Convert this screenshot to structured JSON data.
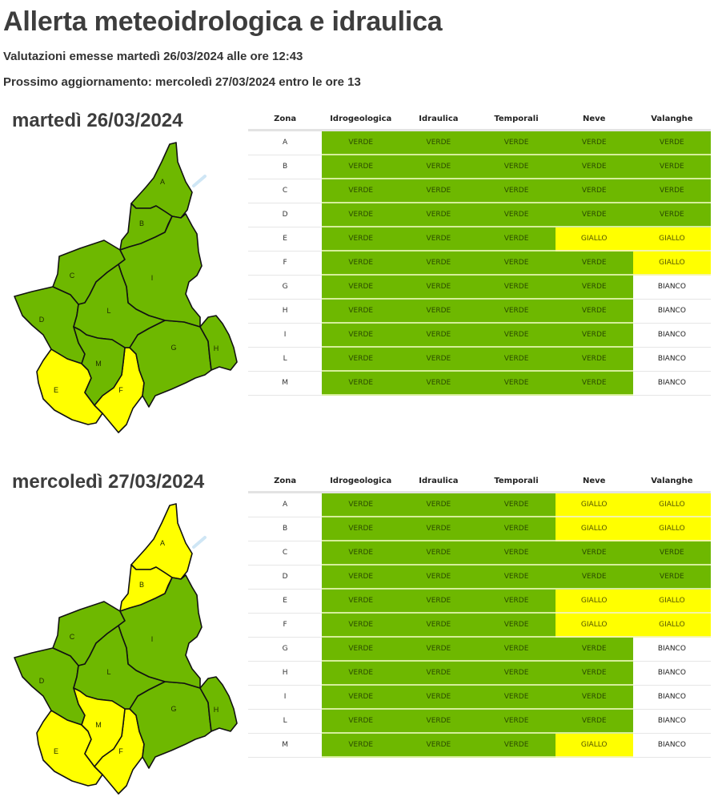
{
  "header": {
    "title": "Allerta meteoidrologica e idraulica",
    "issued": "Valutazioni emesse martedì 26/03/2024 alle ore 12:43",
    "next_update": "Prossimo aggiornamento: mercoledì 27/03/2024 entro le ore 13"
  },
  "colors": {
    "VERDE": "#6eb800",
    "GIALLO": "#ffff00",
    "BIANCO": "#ffffff"
  },
  "columns": [
    "Zona",
    "Idrogeologica",
    "Idraulica",
    "Temporali",
    "Neve",
    "Valanghe"
  ],
  "days": [
    {
      "title": "martedì 26/03/2024",
      "map_zones": {
        "A": "VERDE",
        "B": "VERDE",
        "C": "VERDE",
        "D": "VERDE",
        "E": "GIALLO",
        "F": "GIALLO",
        "G": "VERDE",
        "H": "VERDE",
        "I": "VERDE",
        "L": "VERDE",
        "M": "VERDE"
      },
      "rows": [
        {
          "zona": "A",
          "values": [
            "VERDE",
            "VERDE",
            "VERDE",
            "VERDE",
            "VERDE"
          ]
        },
        {
          "zona": "B",
          "values": [
            "VERDE",
            "VERDE",
            "VERDE",
            "VERDE",
            "VERDE"
          ]
        },
        {
          "zona": "C",
          "values": [
            "VERDE",
            "VERDE",
            "VERDE",
            "VERDE",
            "VERDE"
          ]
        },
        {
          "zona": "D",
          "values": [
            "VERDE",
            "VERDE",
            "VERDE",
            "VERDE",
            "VERDE"
          ]
        },
        {
          "zona": "E",
          "values": [
            "VERDE",
            "VERDE",
            "VERDE",
            "GIALLO",
            "GIALLO"
          ]
        },
        {
          "zona": "F",
          "values": [
            "VERDE",
            "VERDE",
            "VERDE",
            "VERDE",
            "GIALLO"
          ]
        },
        {
          "zona": "G",
          "values": [
            "VERDE",
            "VERDE",
            "VERDE",
            "VERDE",
            "BIANCO"
          ]
        },
        {
          "zona": "H",
          "values": [
            "VERDE",
            "VERDE",
            "VERDE",
            "VERDE",
            "BIANCO"
          ]
        },
        {
          "zona": "I",
          "values": [
            "VERDE",
            "VERDE",
            "VERDE",
            "VERDE",
            "BIANCO"
          ]
        },
        {
          "zona": "L",
          "values": [
            "VERDE",
            "VERDE",
            "VERDE",
            "VERDE",
            "BIANCO"
          ]
        },
        {
          "zona": "M",
          "values": [
            "VERDE",
            "VERDE",
            "VERDE",
            "VERDE",
            "BIANCO"
          ]
        }
      ]
    },
    {
      "title": "mercoledì 27/03/2024",
      "map_zones": {
        "A": "GIALLO",
        "B": "GIALLO",
        "C": "VERDE",
        "D": "VERDE",
        "E": "GIALLO",
        "F": "GIALLO",
        "G": "VERDE",
        "H": "VERDE",
        "I": "VERDE",
        "L": "VERDE",
        "M": "GIALLO"
      },
      "rows": [
        {
          "zona": "A",
          "values": [
            "VERDE",
            "VERDE",
            "VERDE",
            "GIALLO",
            "GIALLO"
          ]
        },
        {
          "zona": "B",
          "values": [
            "VERDE",
            "VERDE",
            "VERDE",
            "GIALLO",
            "GIALLO"
          ]
        },
        {
          "zona": "C",
          "values": [
            "VERDE",
            "VERDE",
            "VERDE",
            "VERDE",
            "VERDE"
          ]
        },
        {
          "zona": "D",
          "values": [
            "VERDE",
            "VERDE",
            "VERDE",
            "VERDE",
            "VERDE"
          ]
        },
        {
          "zona": "E",
          "values": [
            "VERDE",
            "VERDE",
            "VERDE",
            "GIALLO",
            "GIALLO"
          ]
        },
        {
          "zona": "F",
          "values": [
            "VERDE",
            "VERDE",
            "VERDE",
            "GIALLO",
            "GIALLO"
          ]
        },
        {
          "zona": "G",
          "values": [
            "VERDE",
            "VERDE",
            "VERDE",
            "VERDE",
            "BIANCO"
          ]
        },
        {
          "zona": "H",
          "values": [
            "VERDE",
            "VERDE",
            "VERDE",
            "VERDE",
            "BIANCO"
          ]
        },
        {
          "zona": "I",
          "values": [
            "VERDE",
            "VERDE",
            "VERDE",
            "VERDE",
            "BIANCO"
          ]
        },
        {
          "zona": "L",
          "values": [
            "VERDE",
            "VERDE",
            "VERDE",
            "VERDE",
            "BIANCO"
          ]
        },
        {
          "zona": "M",
          "values": [
            "VERDE",
            "VERDE",
            "VERDE",
            "GIALLO",
            "BIANCO"
          ]
        }
      ]
    }
  ]
}
